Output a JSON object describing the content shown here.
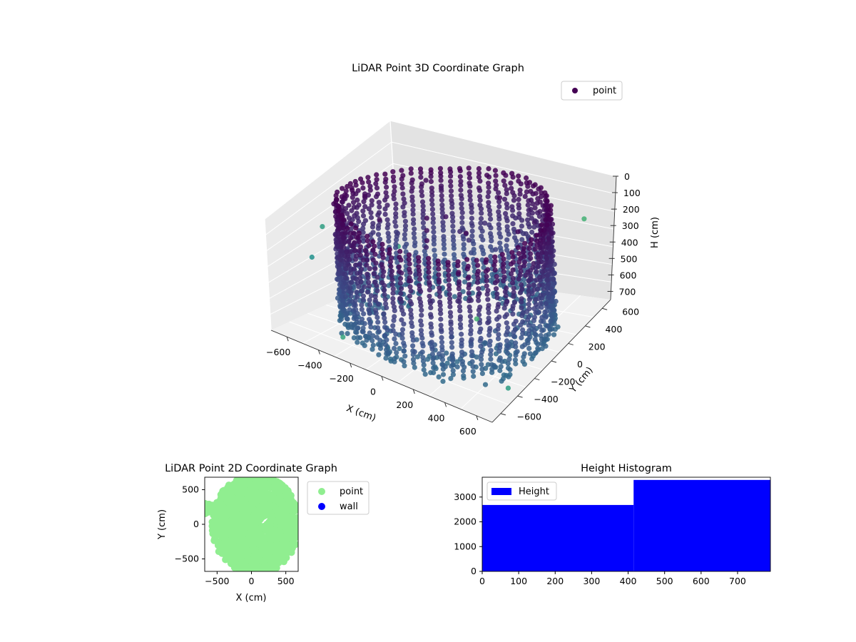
{
  "chart_data": [
    {
      "type": "scatter",
      "title": "LiDAR Point 3D Coordinate Graph",
      "xlabel": "X (cm)",
      "ylabel": "Y (cm)",
      "zlabel": "H (cm)",
      "x_ticks": [
        "−600",
        "−400",
        "−200",
        "0",
        "200",
        "400",
        "600"
      ],
      "y_ticks": [
        "−600",
        "−400",
        "−200",
        "0",
        "200",
        "400",
        "600"
      ],
      "z_ticks": [
        "0",
        "100",
        "200",
        "300",
        "400",
        "500",
        "600",
        "700"
      ],
      "xlim": [
        -700,
        700
      ],
      "ylim": [
        -700,
        700
      ],
      "zlim": [
        0,
        750
      ],
      "z_inverted": true,
      "colormap": "viridis",
      "grid": true,
      "legend_position": "top-right",
      "series": [
        {
          "name": "point",
          "color": "#440154",
          "shape": "roughly circular wall of points, radius about 600 cm, heights 0–750 cm, with scattered outliers"
        }
      ]
    },
    {
      "type": "scatter",
      "title": "LiDAR Point 2D Coordinate Graph",
      "xlabel": "X (cm)",
      "ylabel": "Y (cm)",
      "x_ticks": [
        "−500",
        "0",
        "500"
      ],
      "y_ticks": [
        "500",
        "0",
        "−500"
      ],
      "xlim": [
        -680,
        680
      ],
      "ylim": [
        -680,
        680
      ],
      "legend_position": "outside-right",
      "series": [
        {
          "name": "point",
          "color": "#90ee90"
        },
        {
          "name": "wall",
          "color": "#0000ff"
        }
      ]
    },
    {
      "type": "bar",
      "title": "Height Histogram",
      "x_ticks": [
        "0",
        "100",
        "200",
        "300",
        "400",
        "500",
        "600",
        "700"
      ],
      "y_ticks": [
        "0",
        "1000",
        "2000",
        "3000"
      ],
      "xlim": [
        0,
        790
      ],
      "ylim": [
        0,
        3800
      ],
      "bins": [
        {
          "x0": 0,
          "x1": 415,
          "value": 2680
        },
        {
          "x0": 415,
          "x1": 790,
          "value": 3690
        }
      ],
      "legend_position": "top-left",
      "series": [
        {
          "name": "Height",
          "color": "#0000ff"
        }
      ]
    }
  ]
}
